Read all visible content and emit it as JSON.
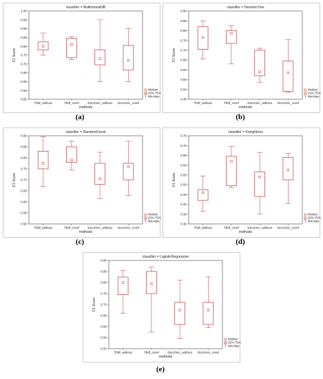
{
  "legend": {
    "median": "Median",
    "iqr": "25%-75%",
    "range": "Min-Max"
  },
  "chart_data": [
    {
      "type": "box",
      "caption": "(a)",
      "title": "classifier = MultinomialNB",
      "xlabel": "methods",
      "ylabel": "F1 Score",
      "ylim": [
        0.5,
        1.0
      ],
      "yticks": [
        "0.50",
        "0.55",
        "0.60",
        "0.65",
        "0.70",
        "0.75",
        "0.80",
        "0.85",
        "0.90",
        "0.95",
        "1.00"
      ],
      "categories": [
        "TfIdf_without",
        "TfIdf_coref",
        "Doc2Vec_without",
        "Doc2Vec_coref"
      ],
      "boxes": [
        {
          "min": 0.75,
          "q1": 0.78,
          "median": 0.8,
          "q3": 0.825,
          "max": 0.875
        },
        {
          "min": 0.725,
          "q1": 0.735,
          "median": 0.81,
          "q3": 0.845,
          "max": 0.855
        },
        {
          "min": 0.6,
          "q1": 0.695,
          "median": 0.73,
          "q3": 0.78,
          "max": 0.95
        },
        {
          "min": 0.6,
          "q1": 0.665,
          "median": 0.72,
          "q3": 0.805,
          "max": 0.9
        }
      ]
    },
    {
      "type": "box",
      "caption": "(b)",
      "title": "classifier = DecisionTree",
      "xlabel": "methods",
      "ylabel": "F1 Score",
      "ylim": [
        0.45,
        0.9
      ],
      "yticks": [
        "0.45",
        "0.50",
        "0.55",
        "0.60",
        "0.65",
        "0.70",
        "0.75",
        "0.80",
        "0.85",
        "0.90"
      ],
      "categories": [
        "TfIdf_without",
        "TfIdf_coref",
        "Doc2Vec_without",
        "Doc2Vec_coref"
      ],
      "boxes": [
        {
          "min": 0.655,
          "q1": 0.705,
          "median": 0.765,
          "q3": 0.82,
          "max": 0.85
        },
        {
          "min": 0.63,
          "q1": 0.735,
          "median": 0.785,
          "q3": 0.8,
          "max": 0.825
        },
        {
          "min": 0.535,
          "q1": 0.57,
          "median": 0.59,
          "q3": 0.7,
          "max": 0.71
        },
        {
          "min": 0.485,
          "q1": 0.49,
          "median": 0.585,
          "q3": 0.645,
          "max": 0.755
        }
      ]
    },
    {
      "type": "box",
      "caption": "(c)",
      "title": "classifier = RandomForest",
      "xlabel": "methods",
      "ylabel": "F1 Score",
      "ylim": [
        0.5,
        0.9
      ],
      "yticks": [
        "0.50",
        "0.55",
        "0.60",
        "0.65",
        "0.70",
        "0.75",
        "0.80",
        "0.85",
        "0.90"
      ],
      "categories": [
        "TfIdf_without",
        "TfIdf_coref",
        "Doc2Vec_without",
        "Doc2Vec_coref"
      ],
      "boxes": [
        {
          "min": 0.67,
          "q1": 0.75,
          "median": 0.775,
          "q3": 0.83,
          "max": 0.895
        },
        {
          "min": 0.745,
          "q1": 0.78,
          "median": 0.79,
          "q3": 0.85,
          "max": 0.875
        },
        {
          "min": 0.615,
          "q1": 0.68,
          "median": 0.705,
          "q3": 0.775,
          "max": 0.825
        },
        {
          "min": 0.63,
          "q1": 0.7,
          "median": 0.76,
          "q3": 0.775,
          "max": 0.875
        }
      ]
    },
    {
      "type": "box",
      "caption": "(d)",
      "title": "classifier = Kneighbors",
      "xlabel": "methods",
      "ylabel": "F1 Score",
      "ylim": [
        0.3,
        0.75
      ],
      "yticks": [
        "0.30",
        "0.35",
        "0.40",
        "0.45",
        "0.50",
        "0.55",
        "0.60",
        "0.65",
        "0.70",
        "0.75"
      ],
      "categories": [
        "TfIdf_without",
        "TfIdf_coref",
        "Doc2Vec_without",
        "Doc2Vec_coref"
      ],
      "boxes": [
        {
          "min": 0.365,
          "q1": 0.42,
          "median": 0.46,
          "q3": 0.475,
          "max": 0.545
        },
        {
          "min": 0.485,
          "q1": 0.495,
          "median": 0.62,
          "q3": 0.645,
          "max": 0.695
        },
        {
          "min": 0.35,
          "q1": 0.44,
          "median": 0.54,
          "q3": 0.565,
          "max": 0.665
        },
        {
          "min": 0.405,
          "q1": 0.525,
          "median": 0.575,
          "q3": 0.64,
          "max": 0.66
        }
      ]
    },
    {
      "type": "box",
      "caption": "(e)",
      "title": "classifier = LogisticRegression",
      "xlabel": "methods",
      "ylabel": "F1 Score",
      "ylim": [
        0.5,
        0.9
      ],
      "yticks": [
        "0.50",
        "0.55",
        "0.60",
        "0.65",
        "0.70",
        "0.75",
        "0.80",
        "0.85",
        "0.90"
      ],
      "categories": [
        "TfIdf_without",
        "TfIdf_coref",
        "Doc2Vec_without",
        "Doc2Vec_coref"
      ],
      "boxes": [
        {
          "min": 0.66,
          "q1": 0.745,
          "median": 0.8,
          "q3": 0.825,
          "max": 0.855
        },
        {
          "min": 0.575,
          "q1": 0.75,
          "median": 0.795,
          "q3": 0.85,
          "max": 0.87
        },
        {
          "min": 0.545,
          "q1": 0.61,
          "median": 0.675,
          "q3": 0.71,
          "max": 0.81
        },
        {
          "min": 0.595,
          "q1": 0.61,
          "median": 0.675,
          "q3": 0.71,
          "max": 0.825
        }
      ]
    }
  ]
}
